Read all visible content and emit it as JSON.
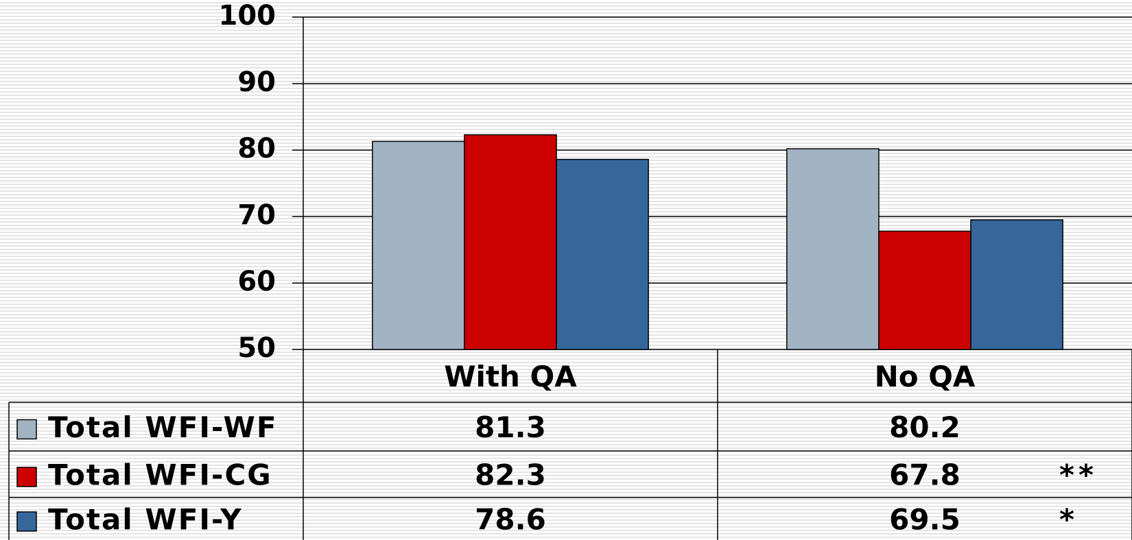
{
  "chart_data": {
    "type": "bar",
    "categories": [
      "With QA",
      "No QA"
    ],
    "series": [
      {
        "name": "Total WFI-WF",
        "color": "#a2b3c4",
        "values": [
          81.3,
          80.2
        ]
      },
      {
        "name": "Total WFI-CG",
        "color": "#cc0000",
        "values": [
          82.3,
          67.8
        ],
        "significance": [
          null,
          "**"
        ]
      },
      {
        "name": "Total WFI-Y",
        "color": "#35679b",
        "values": [
          78.6,
          69.5
        ],
        "significance": [
          null,
          "*"
        ]
      }
    ],
    "ylim": [
      50,
      100
    ],
    "yticks": [
      50,
      60,
      70,
      80,
      90,
      100
    ],
    "grid": true
  }
}
